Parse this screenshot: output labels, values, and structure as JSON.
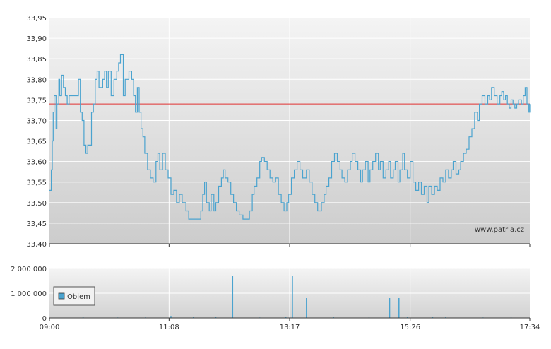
{
  "chart_data": [
    {
      "type": "line",
      "title": "",
      "xlabel": "",
      "ylabel": "",
      "x_ticks": [
        "09:00",
        "11:08",
        "13:17",
        "15:26",
        "17:34"
      ],
      "x_range": [
        "09:00",
        "17:34"
      ],
      "ylim": [
        33.4,
        33.95
      ],
      "y_ticks": [
        "33,40",
        "33,45",
        "33,50",
        "33,55",
        "33,60",
        "33,65",
        "33,70",
        "33,75",
        "33,80",
        "33,85",
        "33,90",
        "33,95"
      ],
      "reference_line": 33.74,
      "watermark": "www.patria.cz",
      "grid": true,
      "colors": {
        "line": "#4aa3cf",
        "reference": "#e03030"
      },
      "series": [
        {
          "points": [
            [
              "09:00",
              33.53
            ],
            [
              "09:02",
              33.58
            ],
            [
              "09:03",
              33.65
            ],
            [
              "09:04",
              33.72
            ],
            [
              "09:05",
              33.76
            ],
            [
              "09:07",
              33.68
            ],
            [
              "09:08",
              33.74
            ],
            [
              "09:10",
              33.8
            ],
            [
              "09:11",
              33.76
            ],
            [
              "09:13",
              33.81
            ],
            [
              "09:15",
              33.78
            ],
            [
              "09:17",
              33.76
            ],
            [
              "09:19",
              33.74
            ],
            [
              "09:21",
              33.76
            ],
            [
              "09:24",
              33.76
            ],
            [
              "09:28",
              33.76
            ],
            [
              "09:31",
              33.8
            ],
            [
              "09:33",
              33.72
            ],
            [
              "09:35",
              33.7
            ],
            [
              "09:37",
              33.64
            ],
            [
              "09:39",
              33.62
            ],
            [
              "09:41",
              33.64
            ],
            [
              "09:43",
              33.64
            ],
            [
              "09:45",
              33.72
            ],
            [
              "09:47",
              33.74
            ],
            [
              "09:49",
              33.8
            ],
            [
              "09:51",
              33.82
            ],
            [
              "09:53",
              33.78
            ],
            [
              "09:57",
              33.8
            ],
            [
              "09:59",
              33.82
            ],
            [
              "10:01",
              33.78
            ],
            [
              "10:03",
              33.82
            ],
            [
              "10:06",
              33.76
            ],
            [
              "10:09",
              33.8
            ],
            [
              "10:12",
              33.82
            ],
            [
              "10:14",
              33.84
            ],
            [
              "10:16",
              33.86
            ],
            [
              "10:19",
              33.76
            ],
            [
              "10:21",
              33.8
            ],
            [
              "10:25",
              33.82
            ],
            [
              "10:28",
              33.8
            ],
            [
              "10:30",
              33.76
            ],
            [
              "10:32",
              33.72
            ],
            [
              "10:34",
              33.78
            ],
            [
              "10:36",
              33.72
            ],
            [
              "10:38",
              33.68
            ],
            [
              "10:40",
              33.66
            ],
            [
              "10:42",
              33.62
            ],
            [
              "10:45",
              33.58
            ],
            [
              "10:48",
              33.56
            ],
            [
              "10:51",
              33.55
            ],
            [
              "10:54",
              33.6
            ],
            [
              "10:56",
              33.62
            ],
            [
              "10:58",
              33.58
            ],
            [
              "11:01",
              33.62
            ],
            [
              "11:04",
              33.58
            ],
            [
              "11:07",
              33.56
            ],
            [
              "11:10",
              33.52
            ],
            [
              "11:13",
              33.53
            ],
            [
              "11:16",
              33.5
            ],
            [
              "11:19",
              33.52
            ],
            [
              "11:22",
              33.5
            ],
            [
              "11:26",
              33.48
            ],
            [
              "11:29",
              33.46
            ],
            [
              "11:33",
              33.46
            ],
            [
              "11:38",
              33.46
            ],
            [
              "11:42",
              33.48
            ],
            [
              "11:44",
              33.52
            ],
            [
              "11:46",
              33.55
            ],
            [
              "11:48",
              33.5
            ],
            [
              "11:51",
              33.48
            ],
            [
              "11:53",
              33.52
            ],
            [
              "11:56",
              33.48
            ],
            [
              "11:58",
              33.5
            ],
            [
              "12:01",
              33.54
            ],
            [
              "12:04",
              33.56
            ],
            [
              "12:06",
              33.58
            ],
            [
              "12:08",
              33.56
            ],
            [
              "12:11",
              33.55
            ],
            [
              "12:14",
              33.52
            ],
            [
              "12:17",
              33.5
            ],
            [
              "12:20",
              33.48
            ],
            [
              "12:23",
              33.47
            ],
            [
              "12:27",
              33.46
            ],
            [
              "12:31",
              33.46
            ],
            [
              "12:34",
              33.48
            ],
            [
              "12:37",
              33.52
            ],
            [
              "12:39",
              33.54
            ],
            [
              "12:42",
              33.56
            ],
            [
              "12:45",
              33.6
            ],
            [
              "12:47",
              33.61
            ],
            [
              "12:50",
              33.6
            ],
            [
              "12:53",
              33.58
            ],
            [
              "12:56",
              33.56
            ],
            [
              "12:59",
              33.55
            ],
            [
              "13:02",
              33.56
            ],
            [
              "13:05",
              33.52
            ],
            [
              "13:08",
              33.5
            ],
            [
              "13:11",
              33.48
            ],
            [
              "13:14",
              33.5
            ],
            [
              "13:16",
              33.52
            ],
            [
              "13:19",
              33.56
            ],
            [
              "13:22",
              33.58
            ],
            [
              "13:25",
              33.6
            ],
            [
              "13:28",
              33.58
            ],
            [
              "13:31",
              33.56
            ],
            [
              "13:35",
              33.58
            ],
            [
              "13:38",
              33.55
            ],
            [
              "13:41",
              33.52
            ],
            [
              "13:44",
              33.5
            ],
            [
              "13:47",
              33.48
            ],
            [
              "13:51",
              33.5
            ],
            [
              "13:54",
              33.52
            ],
            [
              "13:56",
              33.54
            ],
            [
              "13:59",
              33.56
            ],
            [
              "14:02",
              33.6
            ],
            [
              "14:05",
              33.62
            ],
            [
              "14:08",
              33.6
            ],
            [
              "14:11",
              33.58
            ],
            [
              "14:13",
              33.56
            ],
            [
              "14:16",
              33.55
            ],
            [
              "14:19",
              33.58
            ],
            [
              "14:22",
              33.6
            ],
            [
              "14:24",
              33.62
            ],
            [
              "14:27",
              33.6
            ],
            [
              "14:30",
              33.58
            ],
            [
              "14:33",
              33.55
            ],
            [
              "14:35",
              33.58
            ],
            [
              "14:38",
              33.6
            ],
            [
              "14:41",
              33.55
            ],
            [
              "14:43",
              33.58
            ],
            [
              "14:46",
              33.6
            ],
            [
              "14:49",
              33.62
            ],
            [
              "14:52",
              33.58
            ],
            [
              "14:54",
              33.6
            ],
            [
              "14:57",
              33.56
            ],
            [
              "15:00",
              33.58
            ],
            [
              "15:03",
              33.6
            ],
            [
              "15:05",
              33.56
            ],
            [
              "15:08",
              33.58
            ],
            [
              "15:10",
              33.6
            ],
            [
              "15:13",
              33.55
            ],
            [
              "15:15",
              33.58
            ],
            [
              "15:18",
              33.62
            ],
            [
              "15:20",
              33.58
            ],
            [
              "15:23",
              33.56
            ],
            [
              "15:26",
              33.6
            ],
            [
              "15:29",
              33.55
            ],
            [
              "15:32",
              33.53
            ],
            [
              "15:35",
              33.55
            ],
            [
              "15:38",
              33.52
            ],
            [
              "15:41",
              33.54
            ],
            [
              "15:44",
              33.5
            ],
            [
              "15:46",
              33.54
            ],
            [
              "15:49",
              33.52
            ],
            [
              "15:52",
              33.54
            ],
            [
              "15:55",
              33.53
            ],
            [
              "15:58",
              33.56
            ],
            [
              "16:01",
              33.55
            ],
            [
              "16:04",
              33.58
            ],
            [
              "16:07",
              33.56
            ],
            [
              "16:10",
              33.58
            ],
            [
              "16:12",
              33.6
            ],
            [
              "16:15",
              33.57
            ],
            [
              "16:18",
              33.58
            ],
            [
              "16:20",
              33.6
            ],
            [
              "16:23",
              33.62
            ],
            [
              "16:26",
              33.63
            ],
            [
              "16:29",
              33.66
            ],
            [
              "16:32",
              33.68
            ],
            [
              "16:35",
              33.72
            ],
            [
              "16:38",
              33.7
            ],
            [
              "16:40",
              33.74
            ],
            [
              "16:43",
              33.76
            ],
            [
              "16:46",
              33.74
            ],
            [
              "16:49",
              33.76
            ],
            [
              "16:51",
              33.75
            ],
            [
              "16:53",
              33.78
            ],
            [
              "16:56",
              33.76
            ],
            [
              "16:59",
              33.74
            ],
            [
              "17:02",
              33.76
            ],
            [
              "17:04",
              33.77
            ],
            [
              "17:06",
              33.75
            ],
            [
              "17:08",
              33.76
            ],
            [
              "17:10",
              33.74
            ],
            [
              "17:12",
              33.73
            ],
            [
              "17:14",
              33.75
            ],
            [
              "17:16",
              33.74
            ],
            [
              "17:18",
              33.73
            ],
            [
              "17:20",
              33.74
            ],
            [
              "17:22",
              33.75
            ],
            [
              "17:25",
              33.74
            ],
            [
              "17:27",
              33.76
            ],
            [
              "17:29",
              33.78
            ],
            [
              "17:31",
              33.74
            ],
            [
              "17:33",
              33.72
            ],
            [
              "17:34",
              33.74
            ]
          ]
        }
      ]
    },
    {
      "type": "bar",
      "title": "",
      "xlabel": "",
      "ylabel": "",
      "ylim": [
        0,
        2000000
      ],
      "y_ticks": [
        "0",
        "1 000 000",
        "2 000 000"
      ],
      "legend_label": "Objem",
      "legend_placement": "left",
      "grid": true,
      "colors": {
        "bar": "#4aa3cf"
      },
      "series": [
        {
          "name": "Objem",
          "points": [
            [
              "09:36",
              30000
            ],
            [
              "10:13",
              20000
            ],
            [
              "10:43",
              40000
            ],
            [
              "11:10",
              80000
            ],
            [
              "11:34",
              40000
            ],
            [
              "11:58",
              30000
            ],
            [
              "12:16",
              1700000
            ],
            [
              "12:45",
              20000
            ],
            [
              "13:13",
              40000
            ],
            [
              "13:20",
              1700000
            ],
            [
              "13:35",
              800000
            ],
            [
              "14:04",
              30000
            ],
            [
              "14:42",
              20000
            ],
            [
              "15:04",
              800000
            ],
            [
              "15:14",
              800000
            ],
            [
              "15:23",
              30000
            ],
            [
              "15:50",
              30000
            ],
            [
              "16:04",
              30000
            ],
            [
              "16:44",
              20000
            ],
            [
              "17:14",
              20000
            ]
          ]
        }
      ]
    }
  ]
}
